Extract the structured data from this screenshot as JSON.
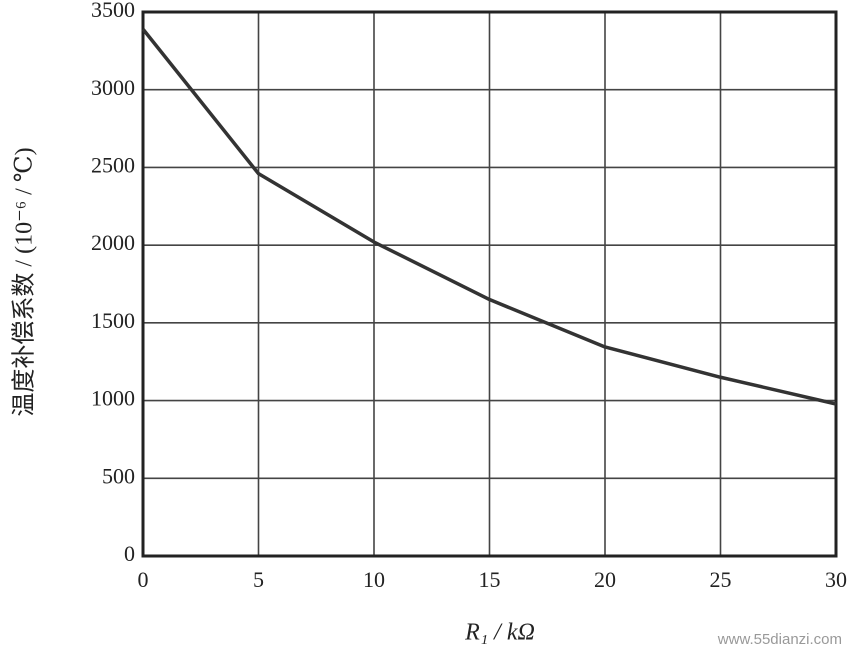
{
  "chart_data": {
    "type": "line",
    "x_label": "R₁ / kΩ",
    "y_label": "温度补偿系数 / (10⁻⁶ / ℃)",
    "watermark": "www.55dianzi.com",
    "x": [
      0,
      5,
      10,
      15,
      20,
      25,
      30
    ],
    "series": [
      {
        "color": "#333333",
        "values": [
          3390,
          2460,
          2020,
          1650,
          1345,
          1150,
          978
        ]
      }
    ],
    "xlim": [
      0,
      30
    ],
    "xticks": [
      0,
      5,
      10,
      15,
      20,
      25,
      30
    ],
    "ylim": [
      0,
      3500
    ],
    "yticks": [
      0,
      500,
      1000,
      1500,
      2000,
      2500,
      3000,
      3500
    ],
    "grid": true
  }
}
